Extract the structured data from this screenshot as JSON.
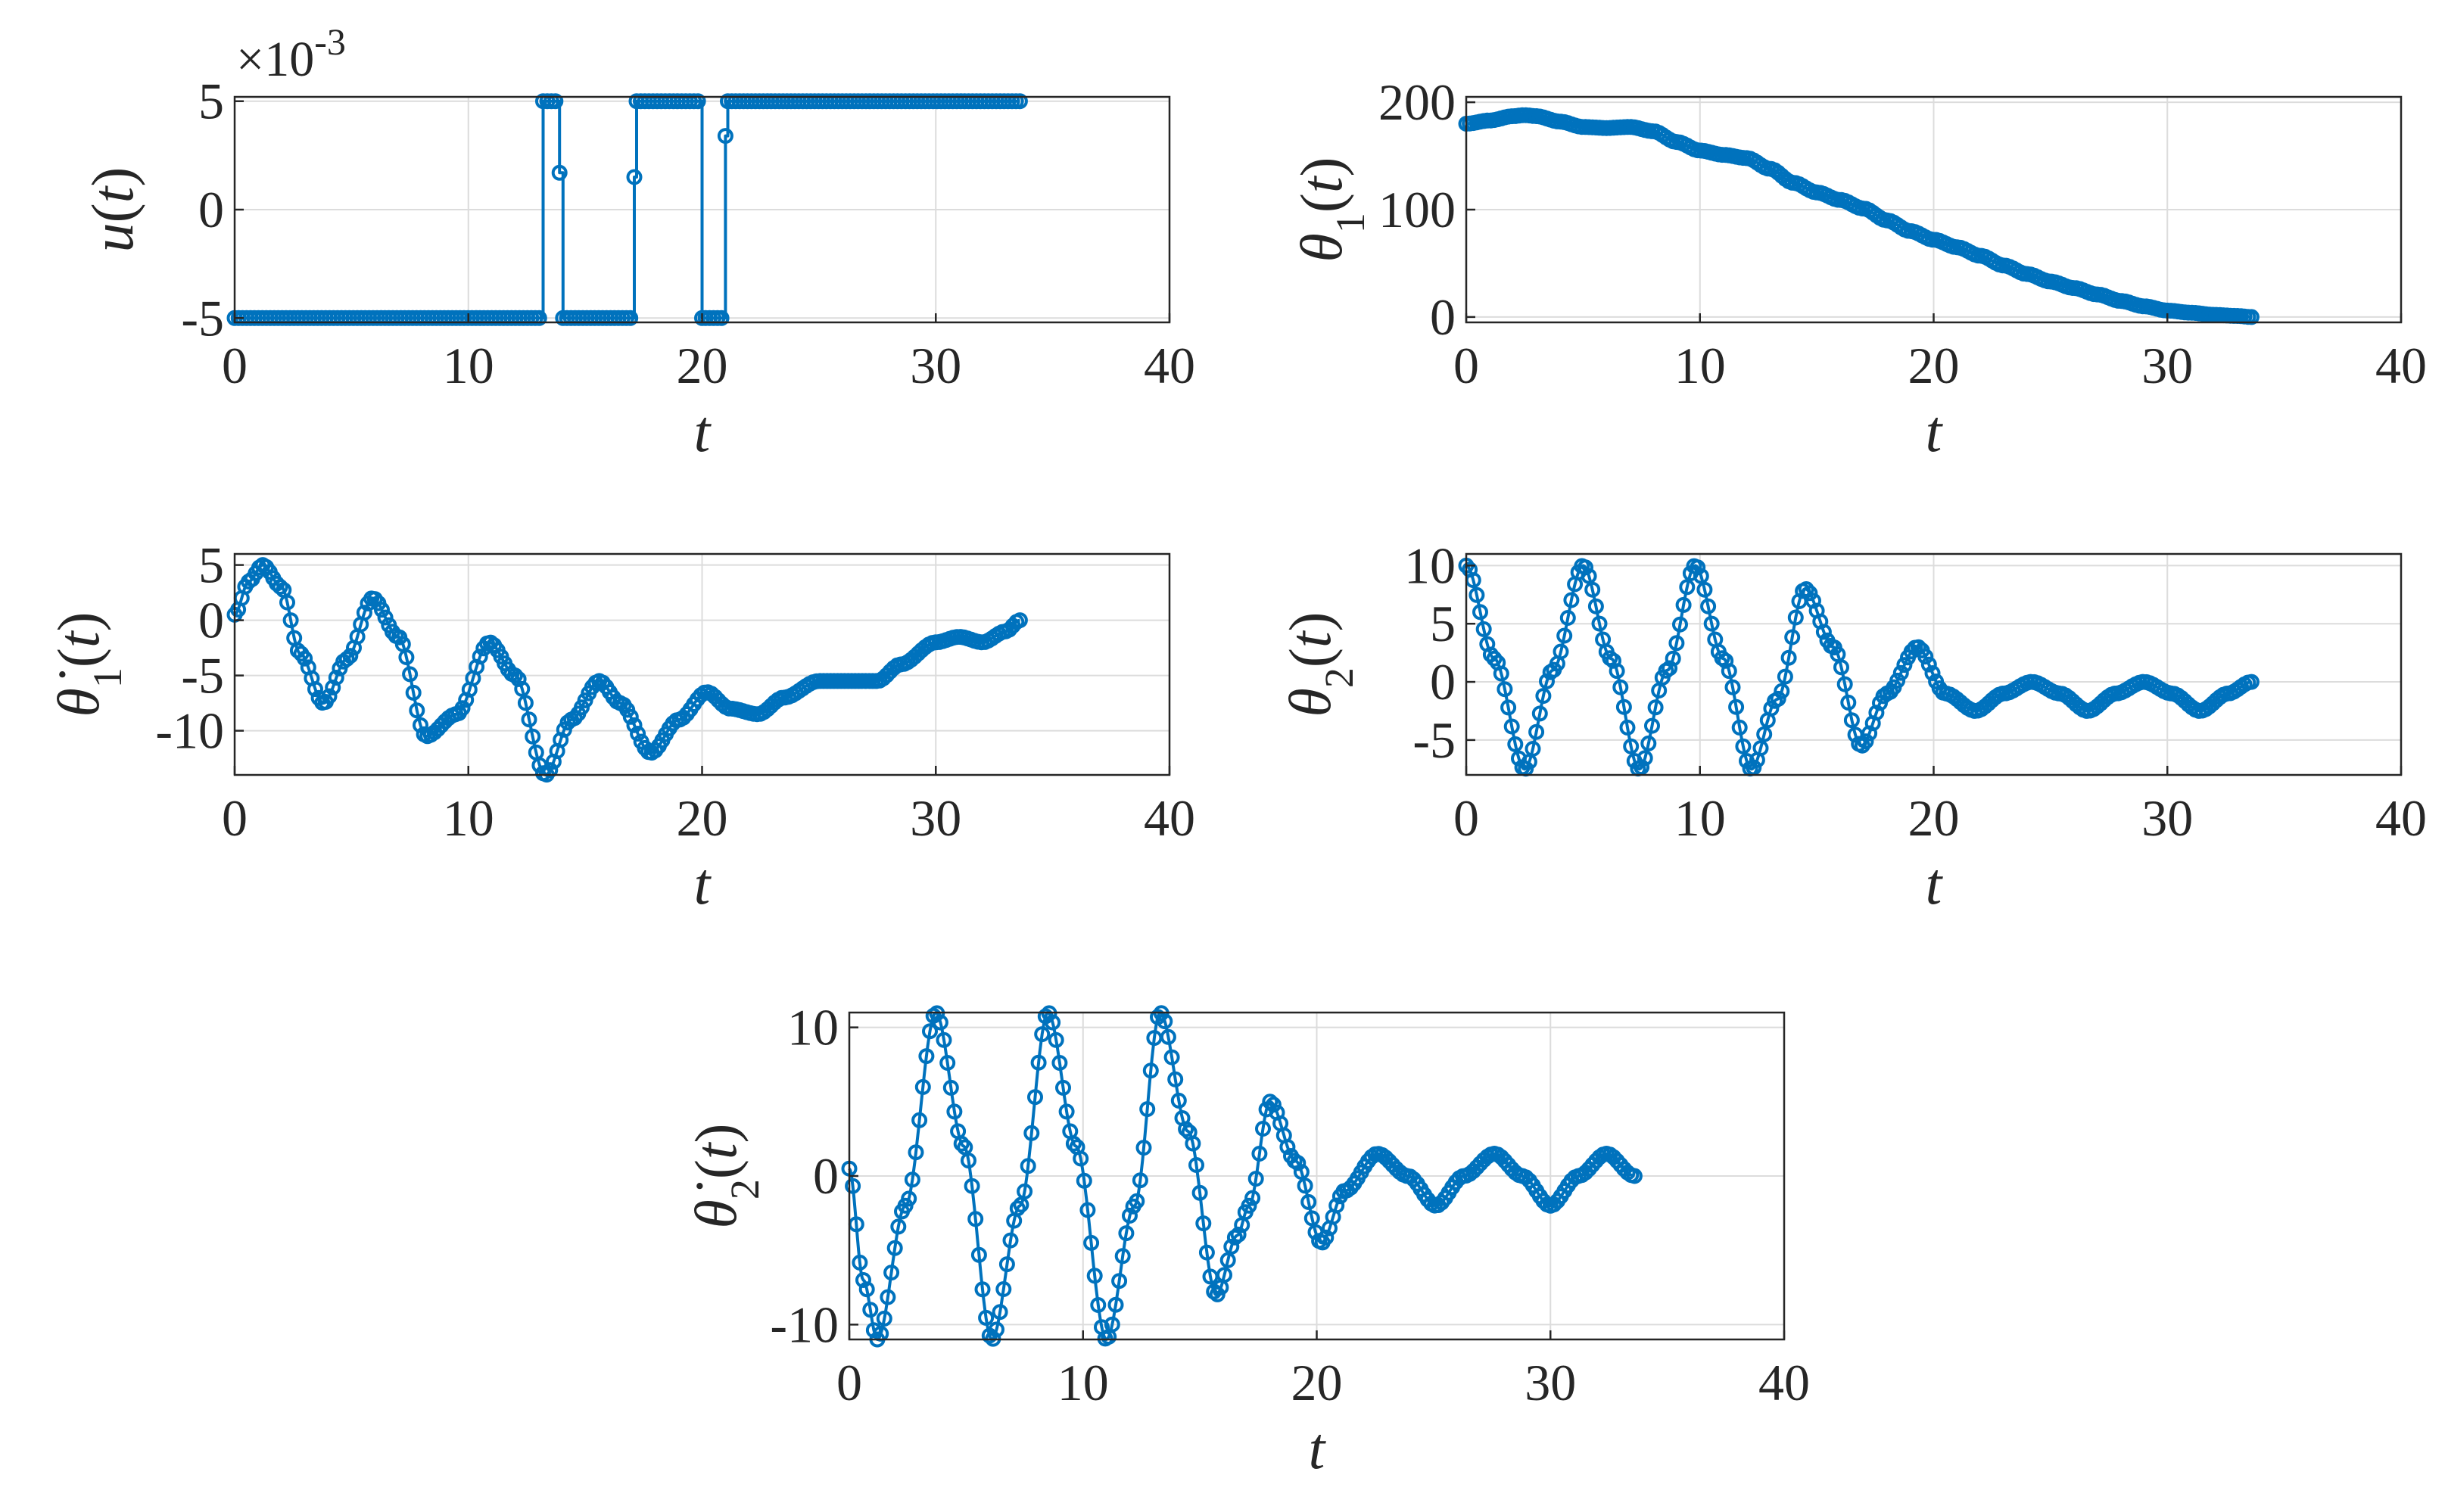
{
  "colors": {
    "series": "#0072BD",
    "axis": "#262626",
    "grid": "#dcdcdc"
  },
  "chart_data": [
    {
      "id": "u",
      "type": "line",
      "markers": "circle",
      "grid": true,
      "xlabel": "t",
      "ylabel": "u(t)",
      "ylabel_parts": {
        "base": "u",
        "sub": "",
        "dot": false
      },
      "exponent_label": "×10",
      "exponent_power": "-3",
      "xlim": [
        0,
        40
      ],
      "ylim": [
        -5.2,
        5.2
      ],
      "xticks": [
        0,
        10,
        20,
        30,
        40
      ],
      "yticks": [
        -5,
        0,
        5
      ],
      "xtick_labels": [
        "0",
        "10",
        "20",
        "30",
        "40"
      ],
      "ytick_labels": [
        "-5",
        "0",
        "5"
      ],
      "series": [
        {
          "x": [
            0,
            13.2,
            13.2,
            13.9,
            13.9,
            14.05,
            14.05,
            17.1,
            17.1,
            17.2,
            17.2,
            20,
            20,
            20.15,
            20.15,
            21,
            21,
            21.1,
            21.1,
            33.6
          ],
          "y": [
            -5,
            -5,
            5,
            5,
            1.7,
            1.7,
            -5,
            -5,
            1.5,
            1.5,
            5,
            5,
            -5,
            -5,
            -5,
            -5,
            3.4,
            3.4,
            5,
            5
          ]
        }
      ]
    },
    {
      "id": "theta1",
      "type": "line",
      "markers": "circle",
      "grid": true,
      "xlabel": "t",
      "ylabel": "θ1(t)",
      "ylabel_parts": {
        "base": "θ",
        "sub": "1",
        "dot": false
      },
      "xlim": [
        0,
        40
      ],
      "ylim": [
        -5,
        205
      ],
      "xticks": [
        0,
        10,
        20,
        30,
        40
      ],
      "yticks": [
        0,
        100,
        200
      ],
      "xtick_labels": [
        "0",
        "10",
        "20",
        "30",
        "40"
      ],
      "ytick_labels": [
        "0",
        "100",
        "200"
      ],
      "series": [
        {
          "x": [
            0,
            1,
            2,
            2.5,
            3,
            4,
            5,
            6,
            7,
            8,
            9,
            10,
            11,
            12,
            13,
            14,
            15,
            16,
            17,
            18,
            19,
            20,
            21,
            22,
            23,
            24,
            25,
            26,
            27,
            28,
            29,
            30,
            31,
            32,
            33,
            33.6
          ],
          "y": [
            180,
            183,
            187,
            188,
            187,
            182,
            177,
            176,
            177,
            173,
            163,
            155,
            151,
            148,
            138,
            125,
            116,
            109,
            101,
            90,
            80,
            72,
            65,
            57,
            48,
            40,
            33,
            27,
            21,
            15,
            10,
            6,
            4,
            2,
            1,
            0
          ]
        }
      ]
    },
    {
      "id": "theta1dot",
      "type": "line",
      "markers": "circle",
      "grid": true,
      "xlabel": "t",
      "ylabel": "θ̇1(t)",
      "ylabel_parts": {
        "base": "θ",
        "sub": "1",
        "dot": true
      },
      "xlim": [
        0,
        40
      ],
      "ylim": [
        -14,
        6
      ],
      "xticks": [
        0,
        10,
        20,
        30,
        40
      ],
      "yticks": [
        -10,
        -5,
        0,
        5
      ],
      "xtick_labels": [
        "0",
        "10",
        "20",
        "30",
        "40"
      ],
      "ytick_labels": [
        "-10",
        "-5",
        "0",
        "5"
      ],
      "series": [
        {
          "x": [
            0,
            0.6,
            1.2,
            2,
            2.8,
            3.8,
            4.8,
            5.9,
            7,
            8.2,
            9.5,
            10.9,
            12,
            13.3,
            14.4,
            15.6,
            16.5,
            17.8,
            19,
            20.2,
            21.2,
            22.4,
            23.5,
            25,
            26.2,
            27.5,
            28.5,
            30,
            31,
            32,
            33,
            33.6
          ],
          "y": [
            0.5,
            3.5,
            5,
            3,
            -3,
            -7.5,
            -3.5,
            2,
            -1.5,
            -10.5,
            -8.5,
            -2,
            -5,
            -14,
            -9,
            -5.5,
            -7.5,
            -12,
            -9,
            -6.5,
            -8,
            -8.5,
            -7,
            -5.5,
            -5.5,
            -5.5,
            -4,
            -2,
            -1.5,
            -2,
            -1,
            0
          ]
        }
      ]
    },
    {
      "id": "theta2",
      "type": "line",
      "markers": "circle",
      "grid": true,
      "xlabel": "t",
      "ylabel": "θ2(t)",
      "ylabel_parts": {
        "base": "θ",
        "sub": "2",
        "dot": false
      },
      "xlim": [
        0,
        40
      ],
      "ylim": [
        -8,
        11
      ],
      "xticks": [
        0,
        10,
        20,
        30,
        40
      ],
      "yticks": [
        -5,
        0,
        5,
        10
      ],
      "xtick_labels": [
        "0",
        "10",
        "20",
        "30",
        "40"
      ],
      "ytick_labels": [
        "-5",
        "0",
        "5",
        "10"
      ],
      "series": [
        {
          "x": [
            0,
            1.2,
            2.5,
            3.7,
            5,
            6.2,
            7.4,
            8.6,
            9.8,
            11,
            12.2,
            13.3,
            14.5,
            15.7,
            16.9,
            18,
            19.3,
            20.5,
            21.8,
            23,
            24.2,
            25.4,
            26.6,
            27.8,
            29,
            30.2,
            31.4,
            32.6,
            33.6
          ],
          "y": [
            10,
            2,
            -7.5,
            1,
            10,
            2,
            -7.5,
            1,
            10,
            2,
            -7.5,
            -1.5,
            8,
            3,
            -5.5,
            -1,
            3,
            -1,
            -2.5,
            -1,
            0,
            -1,
            -2.5,
            -1,
            0,
            -1,
            -2.5,
            -1,
            0
          ]
        }
      ]
    },
    {
      "id": "theta2dot",
      "type": "line",
      "markers": "circle",
      "grid": true,
      "xlabel": "t",
      "ylabel": "θ̇2(t)",
      "ylabel_parts": {
        "base": "θ",
        "sub": "2",
        "dot": true
      },
      "xlim": [
        0,
        40
      ],
      "ylim": [
        -11,
        11
      ],
      "xticks": [
        0,
        10,
        20,
        30,
        40
      ],
      "yticks": [
        -10,
        0,
        10
      ],
      "xtick_labels": [
        "0",
        "10",
        "20",
        "30",
        "40"
      ],
      "ytick_labels": [
        "-10",
        "0",
        "10"
      ],
      "series": [
        {
          "x": [
            0,
            0.6,
            1.2,
            2.4,
            3.7,
            4.9,
            6.1,
            7.3,
            8.5,
            9.7,
            11,
            12.2,
            13.3,
            14.5,
            15.7,
            16.6,
            17.1,
            18,
            19.1,
            20.2,
            21.2,
            22.6,
            23.9,
            25.1,
            26.3,
            27.6,
            28.8,
            30,
            31.2,
            32.4,
            33.6
          ],
          "y": [
            0.5,
            -7,
            -11,
            -2,
            11,
            2,
            -11,
            -2,
            11,
            2,
            -11,
            -2,
            11,
            3,
            -8,
            -4,
            -2,
            5,
            1,
            -4.5,
            -1,
            1.5,
            0,
            -2,
            0,
            1.5,
            0,
            -2,
            0,
            1.5,
            0
          ]
        }
      ]
    }
  ]
}
